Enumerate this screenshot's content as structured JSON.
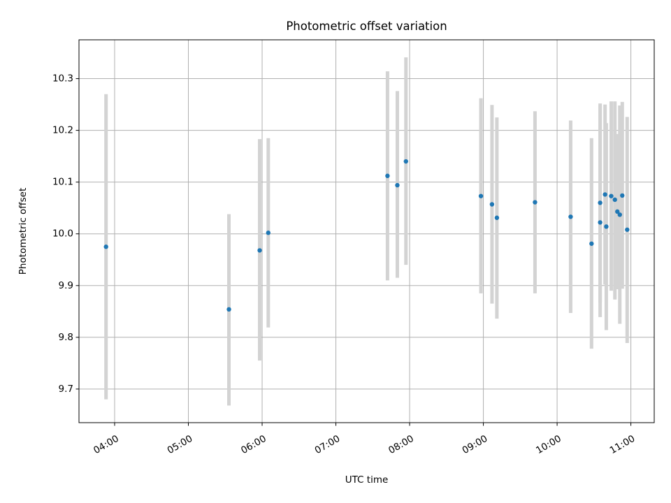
{
  "chart_data": {
    "type": "scatter",
    "title": "Photometric offset variation",
    "xlabel": "UTC time",
    "ylabel": "Photometric offset",
    "x_ticks": [
      "04:00",
      "05:00",
      "06:00",
      "07:00",
      "08:00",
      "09:00",
      "10:00",
      "11:00"
    ],
    "y_ticks": [
      "9.7",
      "9.8",
      "9.9",
      "10.0",
      "10.1",
      "10.2",
      "10.3"
    ],
    "xlim": [
      "03:31",
      "11:19"
    ],
    "ylim": [
      9.635,
      10.375
    ],
    "grid": true,
    "colors": {
      "point": "#1f77b4",
      "errorbar": "#d3d3d3",
      "grid": "#b0b0b0"
    },
    "points": [
      {
        "x": "03:53",
        "y": 9.975,
        "err_low": 9.68,
        "err_high": 10.27
      },
      {
        "x": "05:33",
        "y": 9.854,
        "err_low": 9.668,
        "err_high": 10.038
      },
      {
        "x": "05:58",
        "y": 9.968,
        "err_low": 9.755,
        "err_high": 10.183
      },
      {
        "x": "06:05",
        "y": 10.002,
        "err_low": 9.819,
        "err_high": 10.185
      },
      {
        "x": "07:42",
        "y": 10.112,
        "err_low": 9.91,
        "err_high": 10.314
      },
      {
        "x": "07:50",
        "y": 10.094,
        "err_low": 9.915,
        "err_high": 10.276
      },
      {
        "x": "07:57",
        "y": 10.14,
        "err_low": 9.94,
        "err_high": 10.341
      },
      {
        "x": "08:58",
        "y": 10.073,
        "err_low": 9.885,
        "err_high": 10.262
      },
      {
        "x": "09:07",
        "y": 10.057,
        "err_low": 9.865,
        "err_high": 10.249
      },
      {
        "x": "09:11",
        "y": 10.031,
        "err_low": 9.836,
        "err_high": 10.225
      },
      {
        "x": "09:42",
        "y": 10.061,
        "err_low": 9.885,
        "err_high": 10.237
      },
      {
        "x": "10:11",
        "y": 10.033,
        "err_low": 9.847,
        "err_high": 10.219
      },
      {
        "x": "10:28",
        "y": 9.981,
        "err_low": 9.778,
        "err_high": 10.185
      },
      {
        "x": "10:35",
        "y": 10.022,
        "err_low": 9.868,
        "err_high": 10.252
      },
      {
        "x": "10:35",
        "y": 10.06,
        "err_low": 9.839,
        "err_high": 10.248
      },
      {
        "x": "10:39",
        "y": 10.076,
        "err_low": 9.902,
        "err_high": 10.25
      },
      {
        "x": "10:40",
        "y": 10.014,
        "err_low": 9.814,
        "err_high": 10.214
      },
      {
        "x": "10:44",
        "y": 10.073,
        "err_low": 9.89,
        "err_high": 10.256
      },
      {
        "x": "10:47",
        "y": 10.066,
        "err_low": 9.873,
        "err_high": 10.256
      },
      {
        "x": "10:49",
        "y": 10.043,
        "err_low": 9.893,
        "err_high": 10.193
      },
      {
        "x": "10:51",
        "y": 10.037,
        "err_low": 9.826,
        "err_high": 10.248
      },
      {
        "x": "10:53",
        "y": 10.074,
        "err_low": 9.894,
        "err_high": 10.255
      },
      {
        "x": "10:57",
        "y": 10.008,
        "err_low": 9.789,
        "err_high": 10.226
      }
    ]
  }
}
